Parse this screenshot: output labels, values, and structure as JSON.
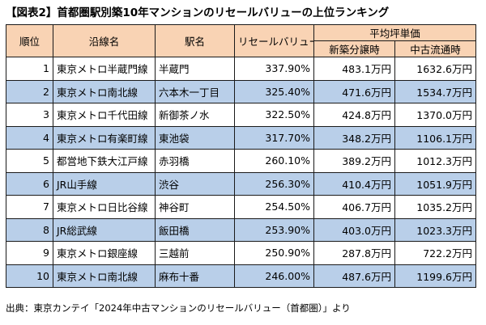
{
  "title": "【図表2】首都圏駅別築10年マンションのリセールバリューの上位ランキング",
  "headers": {
    "rank": "順位",
    "line": "沿線名",
    "station": "駅名",
    "resale": "リセールバリュー",
    "price_group": "平均坪単価",
    "new_sale": "新築分譲時",
    "used": "中古流通時"
  },
  "rows": [
    {
      "rank": "1",
      "line": "東京メトロ半蔵門線",
      "station": "半蔵門",
      "resale": "337.90%",
      "new_sale": "483.1万円",
      "used": "1632.6万円"
    },
    {
      "rank": "2",
      "line": "東京メトロ南北線",
      "station": "六本木一丁目",
      "resale": "325.40%",
      "new_sale": "471.6万円",
      "used": "1534.7万円"
    },
    {
      "rank": "3",
      "line": "東京メトロ千代田線",
      "station": "新御茶ノ水",
      "resale": "322.50%",
      "new_sale": "424.8万円",
      "used": "1370.0万円"
    },
    {
      "rank": "4",
      "line": "東京メトロ有楽町線",
      "station": "東池袋",
      "resale": "317.70%",
      "new_sale": "348.2万円",
      "used": "1106.1万円"
    },
    {
      "rank": "5",
      "line": "都営地下鉄大江戸線",
      "station": "赤羽橋",
      "resale": "260.10%",
      "new_sale": "389.2万円",
      "used": "1012.3万円"
    },
    {
      "rank": "6",
      "line": "JR山手線",
      "station": "渋谷",
      "resale": "256.30%",
      "new_sale": "410.4万円",
      "used": "1051.9万円"
    },
    {
      "rank": "7",
      "line": "東京メトロ日比谷線",
      "station": "神谷町",
      "resale": "254.50%",
      "new_sale": "406.7万円",
      "used": "1035.2万円"
    },
    {
      "rank": "8",
      "line": "JR総武線",
      "station": "飯田橋",
      "resale": "253.90%",
      "new_sale": "403.0万円",
      "used": "1023.3万円"
    },
    {
      "rank": "9",
      "line": "東京メトロ銀座線",
      "station": "三越前",
      "resale": "250.90%",
      "new_sale": "287.8万円",
      "used": "722.2万円"
    },
    {
      "rank": "10",
      "line": "東京メトロ南北線",
      "station": "麻布十番",
      "resale": "246.00%",
      "new_sale": "487.6万円",
      "used": "1199.6万円"
    }
  ],
  "source": "出典：東京カンテイ「2024年中古マンションのリセールバリュー（首都圏）」より",
  "colors": {
    "header_bg": "#f9d3b4",
    "alt_row_bg": "#b9cfe9"
  }
}
